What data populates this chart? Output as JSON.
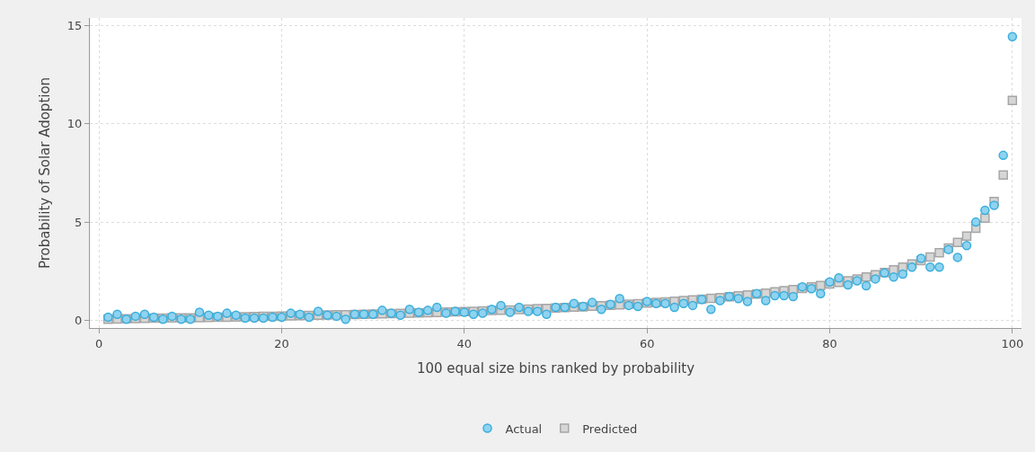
{
  "chart_data": {
    "type": "scatter",
    "xlabel": "100 equal size bins ranked by probability",
    "ylabel": "Probability of Solar Adoption",
    "x": [
      1,
      2,
      3,
      4,
      5,
      6,
      7,
      8,
      9,
      10,
      11,
      12,
      13,
      14,
      15,
      16,
      17,
      18,
      19,
      20,
      21,
      22,
      23,
      24,
      25,
      26,
      27,
      28,
      29,
      30,
      31,
      32,
      33,
      34,
      35,
      36,
      37,
      38,
      39,
      40,
      41,
      42,
      43,
      44,
      45,
      46,
      47,
      48,
      49,
      50,
      51,
      52,
      53,
      54,
      55,
      56,
      57,
      58,
      59,
      60,
      61,
      62,
      63,
      64,
      65,
      66,
      67,
      68,
      69,
      70,
      71,
      72,
      73,
      74,
      75,
      76,
      77,
      78,
      79,
      80,
      81,
      82,
      83,
      84,
      85,
      86,
      87,
      88,
      89,
      90,
      91,
      92,
      93,
      94,
      95,
      96,
      97,
      98,
      99,
      100
    ],
    "series": [
      {
        "name": "Actual",
        "color": "#8fd3f0",
        "marker": "circle",
        "values": [
          0.15,
          0.3,
          0.05,
          0.2,
          0.3,
          0.15,
          0.05,
          0.2,
          0.05,
          0.05,
          0.4,
          0.25,
          0.2,
          0.35,
          0.25,
          0.1,
          0.1,
          0.1,
          0.15,
          0.15,
          0.35,
          0.3,
          0.15,
          0.45,
          0.25,
          0.2,
          0.05,
          0.3,
          0.3,
          0.3,
          0.5,
          0.35,
          0.25,
          0.55,
          0.4,
          0.5,
          0.65,
          0.35,
          0.45,
          0.4,
          0.3,
          0.35,
          0.55,
          0.75,
          0.4,
          0.65,
          0.45,
          0.45,
          0.3,
          0.65,
          0.65,
          0.85,
          0.7,
          0.9,
          0.55,
          0.8,
          1.1,
          0.75,
          0.7,
          0.95,
          0.85,
          0.85,
          0.65,
          0.85,
          0.75,
          1.05,
          0.55,
          1.0,
          1.2,
          1.1,
          0.95,
          1.35,
          1.0,
          1.25,
          1.25,
          1.2,
          1.7,
          1.6,
          1.35,
          1.95,
          2.15,
          1.8,
          2.0,
          1.75,
          2.1,
          2.4,
          2.2,
          2.35,
          2.7,
          3.15,
          2.7,
          2.7,
          3.6,
          3.2,
          3.8,
          5.0,
          5.6,
          5.85,
          8.4,
          14.45
        ]
      },
      {
        "name": "Predicted",
        "color": "#d6d6d6",
        "marker": "square",
        "values": [
          0.05,
          0.06,
          0.07,
          0.08,
          0.09,
          0.1,
          0.1,
          0.11,
          0.12,
          0.12,
          0.13,
          0.14,
          0.15,
          0.15,
          0.16,
          0.17,
          0.18,
          0.19,
          0.2,
          0.21,
          0.22,
          0.23,
          0.24,
          0.25,
          0.26,
          0.27,
          0.28,
          0.29,
          0.3,
          0.31,
          0.32,
          0.33,
          0.34,
          0.35,
          0.37,
          0.38,
          0.39,
          0.41,
          0.42,
          0.44,
          0.45,
          0.47,
          0.49,
          0.5,
          0.52,
          0.54,
          0.56,
          0.58,
          0.6,
          0.62,
          0.64,
          0.66,
          0.68,
          0.71,
          0.73,
          0.76,
          0.78,
          0.81,
          0.84,
          0.87,
          0.9,
          0.93,
          0.96,
          1.0,
          1.03,
          1.07,
          1.11,
          1.15,
          1.19,
          1.24,
          1.28,
          1.33,
          1.38,
          1.44,
          1.5,
          1.56,
          1.62,
          1.69,
          1.76,
          1.84,
          1.92,
          2.01,
          2.1,
          2.2,
          2.31,
          2.43,
          2.56,
          2.7,
          2.86,
          3.03,
          3.22,
          3.44,
          3.68,
          3.96,
          4.28,
          4.68,
          5.2,
          6.05,
          7.4,
          11.2
        ]
      }
    ],
    "xlim": [
      -1,
      101
    ],
    "xticks": [
      0,
      20,
      40,
      60,
      80,
      100
    ],
    "ylim": [
      -0.4,
      15.4
    ],
    "yticks": [
      0,
      5,
      10,
      15
    ],
    "grid": true,
    "legend": "bottom"
  }
}
